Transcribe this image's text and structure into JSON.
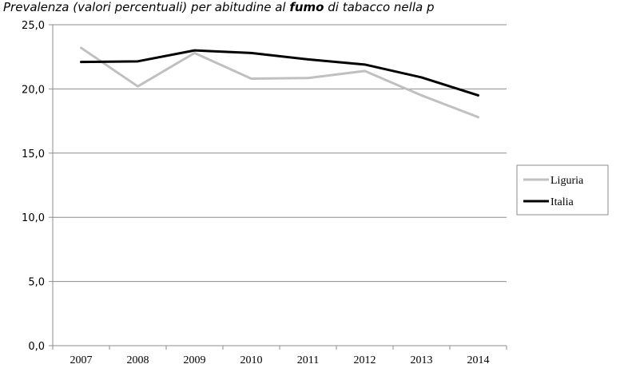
{
  "title_prefix": "Prevalenza (valori percentuali) per abitudine al ",
  "title_bold": "fumo",
  "title_suffix": " di tabacco nella p",
  "chart_data": {
    "type": "line",
    "categories": [
      "2007",
      "2008",
      "2009",
      "2010",
      "2011",
      "2012",
      "2013",
      "2014"
    ],
    "series": [
      {
        "name": "Liguria",
        "color": "#c0c0c0",
        "values": [
          23.2,
          20.2,
          22.8,
          20.8,
          20.85,
          21.4,
          19.5,
          17.8
        ]
      },
      {
        "name": "Italia",
        "color": "#000000",
        "values": [
          22.1,
          22.15,
          23.0,
          22.8,
          22.3,
          21.9,
          20.9,
          19.5
        ]
      }
    ],
    "yticks": [
      "0,0",
      "5,0",
      "10,0",
      "15,0",
      "20,0",
      "25,0"
    ],
    "ylim": [
      0,
      25
    ],
    "grid": true,
    "legend": "right"
  }
}
